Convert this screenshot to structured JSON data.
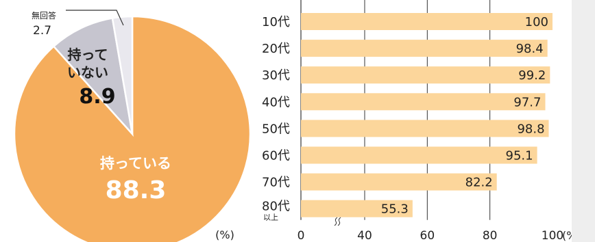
{
  "chart_data": [
    {
      "type": "pie",
      "unit_label": "(%)",
      "slices": [
        {
          "label": "持っている",
          "value": 88.3,
          "color": "#f5ad5c"
        },
        {
          "label": "持って\nいない",
          "value": 8.9,
          "color": "#c6c5cf"
        },
        {
          "label": "無回答",
          "value": 2.7,
          "color": "#e9e8ee"
        }
      ]
    },
    {
      "type": "bar",
      "orientation": "horizontal",
      "categories": [
        "10代",
        "20代",
        "30代",
        "40代",
        "50代",
        "60代",
        "70代",
        "80代\n以上"
      ],
      "values": [
        100,
        98.4,
        99.2,
        97.7,
        98.8,
        95.1,
        82.2,
        55.3
      ],
      "x_ticks": [
        "0",
        "40",
        "60",
        "80",
        "100"
      ],
      "x_unit": "(%)",
      "xlim": [
        40,
        100
      ],
      "axis_break": true,
      "grid": true,
      "bar_color": "#fcd69b"
    }
  ]
}
